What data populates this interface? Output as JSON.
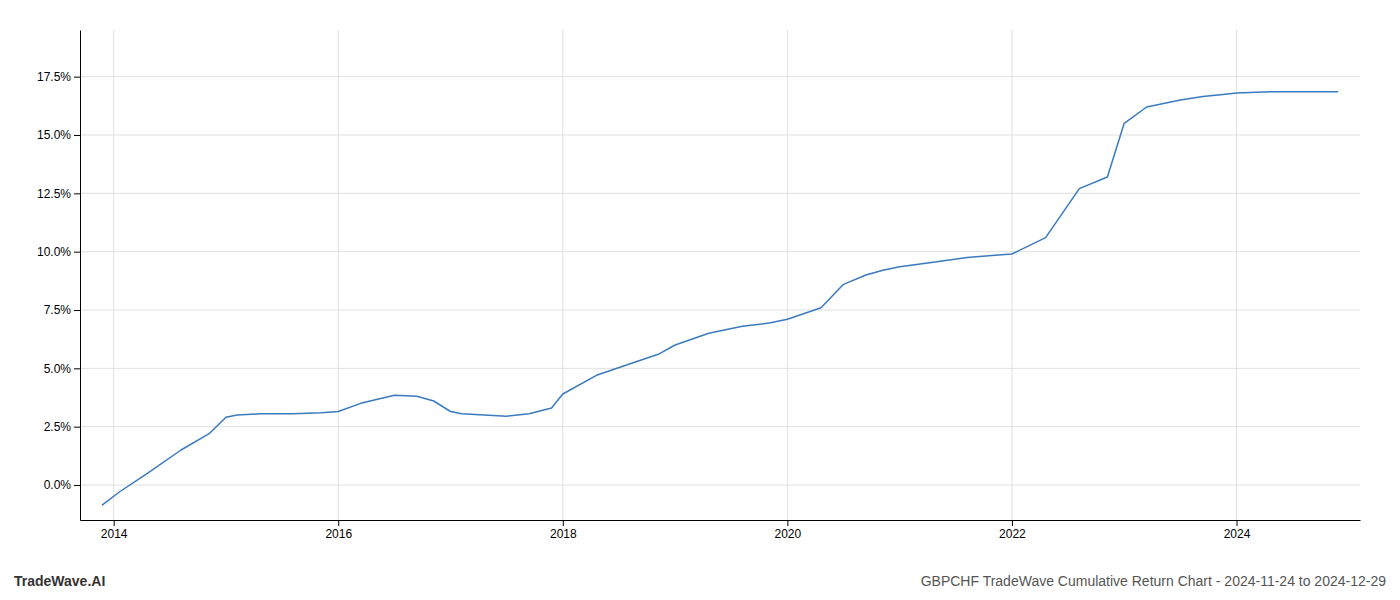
{
  "chart_data": {
    "type": "line",
    "title": "GBPCHF TradeWave Cumulative Return Chart - 2024-11-24 to 2024-12-29",
    "annotations": [
      "TradeWave.AI"
    ],
    "color": "#3a7abf",
    "grid": true,
    "x": [
      2013.9,
      2014.05,
      2014.3,
      2014.6,
      2014.85,
      2015.0,
      2015.1,
      2015.3,
      2015.6,
      2015.85,
      2016.0,
      2016.2,
      2016.5,
      2016.7,
      2016.85,
      2017.0,
      2017.1,
      2017.3,
      2017.5,
      2017.7,
      2017.9,
      2018.0,
      2018.3,
      2018.6,
      2018.85,
      2019.0,
      2019.3,
      2019.6,
      2019.85,
      2020.0,
      2020.3,
      2020.5,
      2020.7,
      2020.85,
      2021.0,
      2021.3,
      2021.6,
      2021.85,
      2022.0,
      2022.3,
      2022.6,
      2022.85,
      2023.0,
      2023.2,
      2023.5,
      2023.7,
      2023.9,
      2024.0,
      2024.3,
      2024.9
    ],
    "values": [
      -0.85,
      -0.3,
      0.5,
      1.5,
      2.2,
      2.9,
      3.0,
      3.05,
      3.05,
      3.1,
      3.15,
      3.5,
      3.85,
      3.8,
      3.6,
      3.15,
      3.05,
      3.0,
      2.95,
      3.05,
      3.3,
      3.9,
      4.7,
      5.2,
      5.6,
      6.0,
      6.5,
      6.8,
      6.95,
      7.1,
      7.6,
      8.6,
      9.0,
      9.2,
      9.35,
      9.55,
      9.75,
      9.85,
      9.9,
      10.6,
      12.7,
      13.2,
      15.5,
      16.2,
      16.5,
      16.65,
      16.75,
      16.8,
      16.85,
      16.85
    ],
    "xlim": [
      2013.7,
      2025.1
    ],
    "xticks": [
      2014,
      2016,
      2018,
      2020,
      2022,
      2024
    ],
    "ylim": [
      -1.5,
      19.5
    ],
    "yticks": [
      {
        "value": 0.0,
        "label": "0.0%"
      },
      {
        "value": 2.5,
        "label": "2.5%"
      },
      {
        "value": 5.0,
        "label": "5.0%"
      },
      {
        "value": 7.5,
        "label": "7.5%"
      },
      {
        "value": 10.0,
        "label": "10.0%"
      },
      {
        "value": 12.5,
        "label": "12.5%"
      },
      {
        "value": 15.0,
        "label": "15.0%"
      },
      {
        "value": 17.5,
        "label": "17.5%"
      }
    ]
  }
}
